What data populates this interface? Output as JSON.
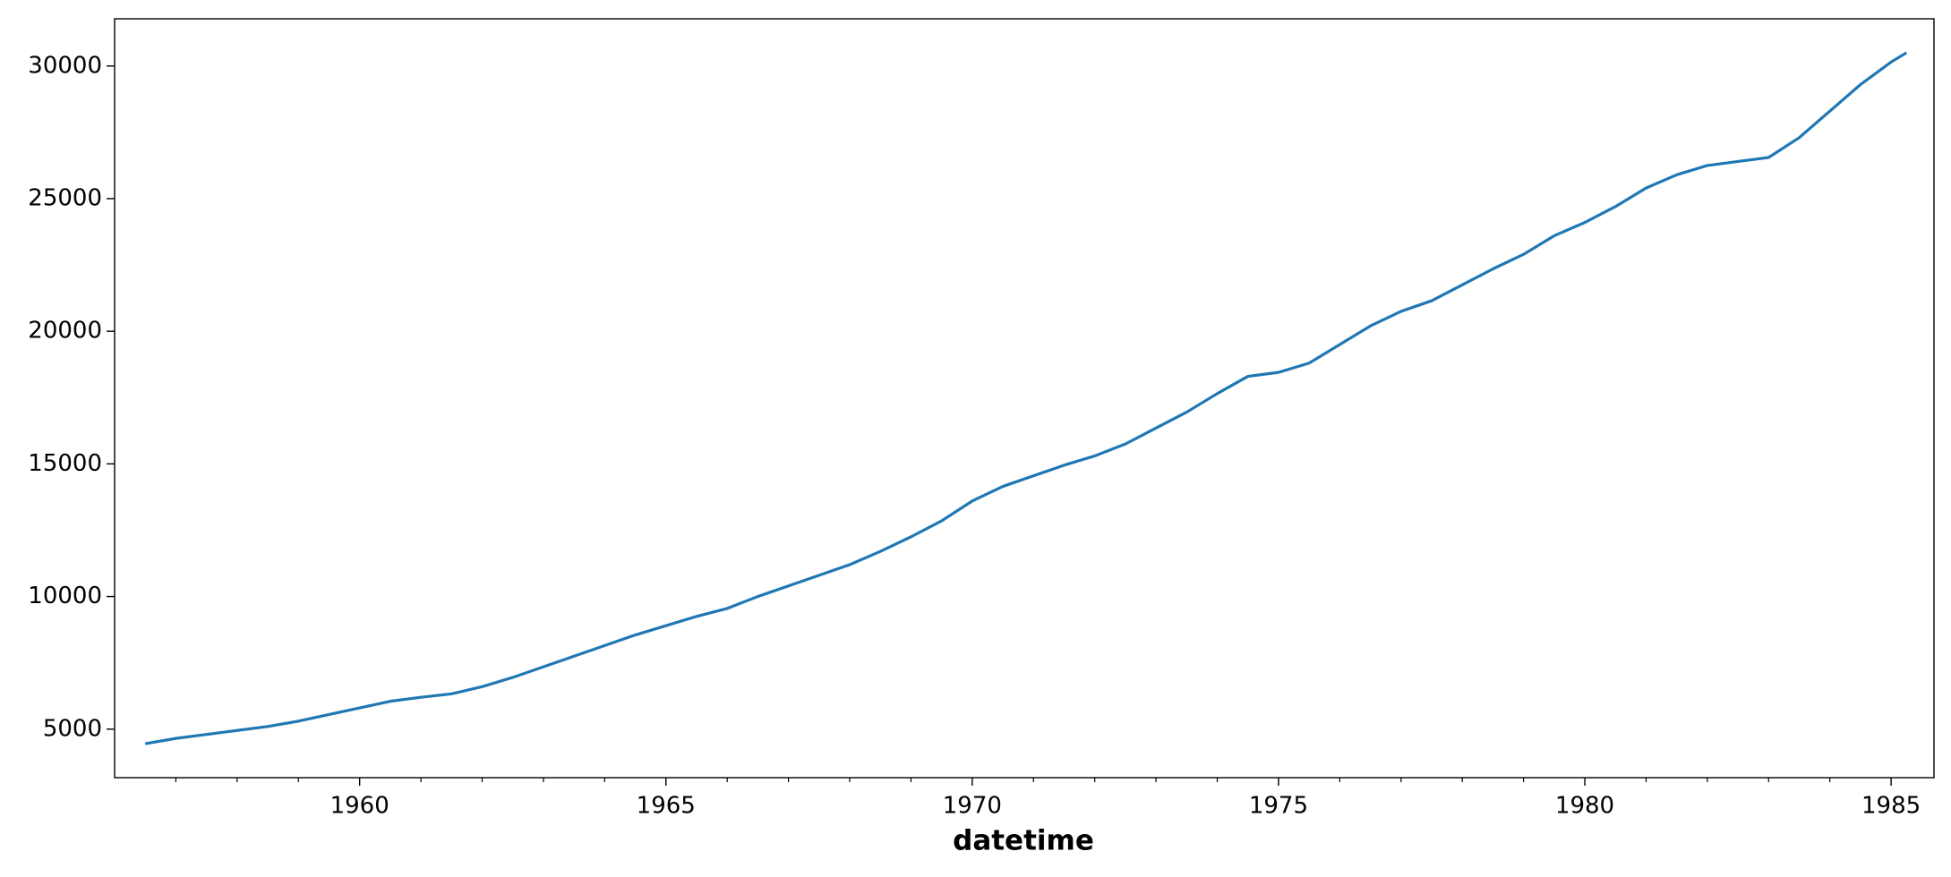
{
  "chart_data": {
    "type": "line",
    "x_label": "datetime",
    "x": [
      1956.5,
      1957.0,
      1957.5,
      1958.0,
      1958.5,
      1959.0,
      1959.5,
      1960.0,
      1960.5,
      1961.0,
      1961.5,
      1962.0,
      1962.5,
      1963.0,
      1963.5,
      1964.0,
      1964.5,
      1965.0,
      1965.5,
      1966.0,
      1966.5,
      1967.0,
      1967.5,
      1968.0,
      1968.5,
      1969.0,
      1969.5,
      1970.0,
      1970.5,
      1971.0,
      1971.5,
      1972.0,
      1972.5,
      1973.0,
      1973.5,
      1974.0,
      1974.5,
      1975.0,
      1975.5,
      1976.0,
      1976.5,
      1977.0,
      1977.5,
      1978.0,
      1978.5,
      1979.0,
      1979.5,
      1980.0,
      1980.5,
      1981.0,
      1981.5,
      1982.0,
      1982.5,
      1983.0,
      1983.5,
      1984.0,
      1984.5,
      1985.0,
      1985.25
    ],
    "series": [
      {
        "color": "#1f77b4",
        "values": [
          4450,
          4650,
          4800,
          4950,
          5100,
          5300,
          5550,
          5800,
          6050,
          6200,
          6330,
          6600,
          6950,
          7350,
          7750,
          8150,
          8550,
          8900,
          9250,
          9550,
          10000,
          10400,
          10800,
          11200,
          11700,
          12250,
          12850,
          13600,
          14150,
          14550,
          14950,
          15300,
          15750,
          16350,
          16950,
          17650,
          18300,
          18450,
          18800,
          19500,
          20200,
          20750,
          21150,
          21750,
          22350,
          22900,
          23600,
          24100,
          24700,
          25400,
          25900,
          26250,
          26400,
          26550,
          27300,
          28300,
          29300,
          30150,
          30500
        ]
      }
    ],
    "xlim": [
      1956.0,
      1985.7
    ],
    "xticks": [
      1960,
      1965,
      1970,
      1975,
      1980,
      1985
    ],
    "xminorticks": [
      1957,
      1958,
      1959,
      1961,
      1962,
      1963,
      1964,
      1966,
      1967,
      1968,
      1969,
      1971,
      1972,
      1973,
      1974,
      1976,
      1977,
      1978,
      1979,
      1981,
      1982,
      1983,
      1984
    ],
    "ylim": [
      3170,
      31780
    ],
    "yticks": [
      5000,
      10000,
      15000,
      20000,
      25000,
      30000
    ],
    "grid": false
  }
}
